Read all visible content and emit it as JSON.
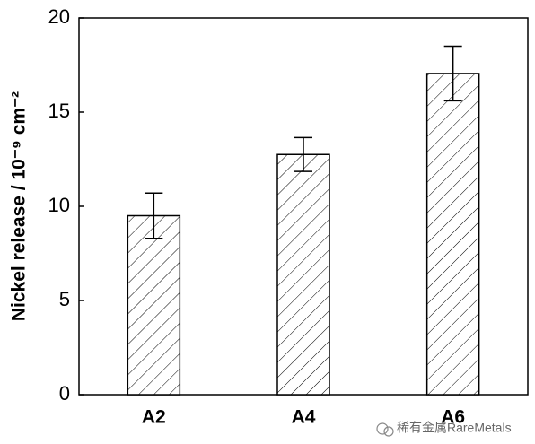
{
  "chart_data": {
    "type": "bar",
    "y_label": "Nickel release / 10⁻⁹ cm⁻²",
    "categories": [
      "A2",
      "A4",
      "A6"
    ],
    "values": [
      9.5,
      12.75,
      17.05
    ],
    "errors": [
      1.2,
      0.9,
      1.45
    ],
    "color": "#ffffff",
    "hatch": "diagonal",
    "ylim": [
      0,
      20
    ],
    "yticks": [
      0,
      5,
      10,
      15,
      20
    ],
    "grid": false
  },
  "watermark": "稀有金属RareMetals"
}
